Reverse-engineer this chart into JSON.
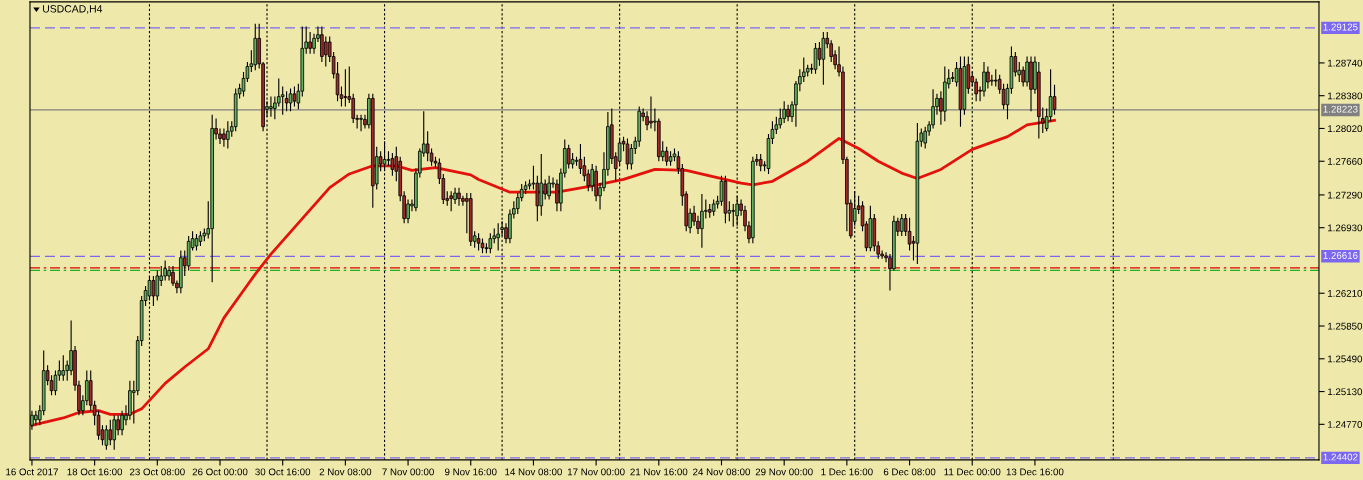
{
  "chart_data": {
    "type": "candlestick",
    "title": "USDCAD,H4",
    "colors": [
      "#5fb35f",
      "#5fb35f",
      "#5fb35f",
      "#5fb35f",
      "#a2282a",
      "#a2282a",
      "#5fb35f",
      "#5fb35f",
      "#5fb35f",
      "#5fb35f",
      "#5fb35f",
      "#a2282a",
      "#a2282a",
      "#5fb35f",
      "#5fb35f",
      "#a2282a",
      "#a2282a",
      "#a2282a",
      "#a2282a",
      "#5fb35f",
      "#a2282a",
      "#5fb35f",
      "#a2282a",
      "#5fb35f",
      "#5fb35f",
      "#5fb35f",
      "#5fb35f",
      "#5fb35f",
      "#5fb35f",
      "#5fb35f",
      "#5fb35f",
      "#a2282a",
      "#5fb35f",
      "#5fb35f",
      "#5fb35f",
      "#5fb35f",
      "#a2282a",
      "#a2282a",
      "#5fb35f",
      "#a2282a",
      "#5fb35f",
      "#5fb35f",
      "#5fb35f",
      "#5fb35f",
      "#5fb35f",
      "#5fb35f",
      "#5fb35f",
      "#a2282a",
      "#a2282a",
      "#a2282a",
      "#5fb35f",
      "#5fb35f",
      "#5fb35f",
      "#5fb35f",
      "#5fb35f",
      "#5fb35f",
      "#5fb35f",
      "#5fb35f",
      "#a2282a",
      "#a2282a",
      "#5fb35f",
      "#5fb35f",
      "#5fb35f",
      "#5fb35f",
      "#5fb35f",
      "#a2282a",
      "#5fb35f",
      "#a2282a",
      "#5fb35f",
      "#5fb35f",
      "#5fb35f",
      "#a2282a",
      "#5fb35f",
      "#5fb35f",
      "#a2282a",
      "#a2282a",
      "#a2282a",
      "#a2282a",
      "#a2282a",
      "#a2282a",
      "#a2282a",
      "#a2282a",
      "#a2282a",
      "#a2282a",
      "#5fb35f",
      "#a2282a",
      "#5fb35f",
      "#a2282a",
      "#5fb35f",
      "#a2282a",
      "#5fb35f",
      "#5fb35f",
      "#a2282a",
      "#a2282a",
      "#a2282a",
      "#a2282a",
      "#5fb35f",
      "#5fb35f",
      "#5fb35f",
      "#5fb35f",
      "#5fb35f",
      "#a2282a",
      "#a2282a",
      "#a2282a",
      "#a2282a",
      "#a2282a",
      "#a2282a",
      "#a2282a",
      "#5fb35f",
      "#a2282a",
      "#a2282a",
      "#a2282a",
      "#a2282a",
      "#5fb35f",
      "#a2282a",
      "#a2282a",
      "#a2282a",
      "#5fb35f",
      "#5fb35f",
      "#5fb35f",
      "#5fb35f",
      "#a2282a",
      "#5fb35f",
      "#5fb35f",
      "#5fb35f",
      "#5fb35f",
      "#5fb35f",
      "#5fb35f",
      "#5fb35f",
      "#a2282a",
      "#5fb35f",
      "#a2282a",
      "#5fb35f",
      "#5fb35f",
      "#a2282a",
      "#5fb35f",
      "#5fb35f",
      "#a2282a",
      "#5fb35f",
      "#5fb35f",
      "#a2282a",
      "#a2282a",
      "#a2282a",
      "#5fb35f",
      "#a2282a",
      "#5fb35f",
      "#5fb35f",
      "#5fb35f",
      "#a2282a",
      "#a2282a",
      "#5fb35f",
      "#a2282a",
      "#a2282a",
      "#5fb35f",
      "#5fb35f",
      "#5fb35f",
      "#a2282a",
      "#a2282a",
      "#a2282a",
      "#5fb35f",
      "#a2282a",
      "#5fb35f",
      "#a2282a",
      "#5fb35f",
      "#5fb35f",
      "#a2282a",
      "#a2282a",
      "#a2282a",
      "#5fb35f",
      "#a2282a",
      "#a2282a",
      "#5fb35f",
      "#5fb35f",
      "#a2282a",
      "#5fb35f",
      "#5fb35f",
      "#5fb35f",
      "#a2282a",
      "#5fb35f",
      "#5fb35f",
      "#5fb35f",
      "#a2282a",
      "#a2282a",
      "#a2282a",
      "#5fb35f",
      "#a2282a",
      "#a2282a",
      "#5fb35f",
      "#5fb35f",
      "#5fb35f",
      "#5fb35f",
      "#5fb35f",
      "#5fb35f",
      "#a2282a",
      "#5fb35f",
      "#5fb35f",
      "#5fb35f",
      "#5fb35f",
      "#5fb35f",
      "#a2282a",
      "#5fb35f",
      "#a2282a",
      "#5fb35f",
      "#a2282a",
      "#a2282a",
      "#a2282a",
      "#a2282a",
      "#a2282a",
      "#a2282a",
      "#a2282a",
      "#5fb35f",
      "#a2282a",
      "#a2282a",
      "#a2282a",
      "#5fb35f",
      "#a2282a",
      "#a2282a",
      "#a2282a",
      "#a2282a",
      "#a2282a",
      "#5fb35f",
      "#a2282a",
      "#5fb35f",
      "#a2282a",
      "#a2282a",
      "#a2282a",
      "#5fb35f",
      "#5fb35f",
      "#5fb35f",
      "#5fb35f",
      "#5fb35f",
      "#5fb35f",
      "#a2282a",
      "#5fb35f",
      "#5fb35f",
      "#5fb35f",
      "#5fb35f",
      "#a2282a",
      "#5fb35f",
      "#a2282a",
      "#a2282a",
      "#a2282a",
      "#a2282a",
      "#5fb35f",
      "#a2282a",
      "#5fb35f",
      "#a2282a",
      "#a2282a",
      "#a2282a",
      "#5fb35f",
      "#5fb35f",
      "#a2282a",
      "#5fb35f",
      "#a2282a",
      "#5fb35f",
      "#a2282a",
      "#5fb35f",
      "#a2282a",
      "#a2282a",
      "#5fb35f",
      "#5fb35f",
      "#a2282a",
      null,
      null,
      null,
      null,
      null,
      null,
      null,
      null,
      null,
      null,
      null,
      null,
      null,
      null,
      null,
      null,
      null,
      null,
      null,
      null,
      null,
      null,
      null,
      null,
      null,
      null,
      null,
      null,
      null,
      null,
      null,
      null,
      null,
      null,
      null,
      null,
      null,
      null,
      null,
      null,
      null,
      null,
      null,
      null,
      null,
      null,
      null,
      null,
      null,
      null,
      null,
      null,
      null,
      null,
      null,
      null,
      null,
      null,
      null,
      null,
      null,
      null,
      null,
      null,
      null,
      null,
      null
    ],
    "categories": [
      "16 Oct 2017",
      null,
      null,
      null,
      null,
      null,
      null,
      null,
      null,
      null,
      null,
      null,
      null,
      null,
      null,
      null,
      "18 Oct 16:00",
      null,
      null,
      null,
      null,
      null,
      null,
      null,
      null,
      null,
      null,
      null,
      null,
      null,
      null,
      null,
      "23 Oct 08:00",
      null,
      null,
      null,
      null,
      null,
      null,
      null,
      null,
      null,
      null,
      null,
      null,
      null,
      null,
      null,
      "26 Oct 00:00",
      null,
      null,
      null,
      null,
      null,
      null,
      null,
      null,
      null,
      null,
      null,
      null,
      null,
      null,
      null,
      "30 Oct 16:00",
      null,
      null,
      null,
      null,
      null,
      null,
      null,
      null,
      null,
      null,
      null,
      null,
      null,
      null,
      null,
      "2 Nov 08:00",
      null,
      null,
      null,
      null,
      null,
      null,
      null,
      null,
      null,
      null,
      null,
      null,
      null,
      null,
      null,
      "7 Nov 00:00",
      null,
      null,
      null,
      null,
      null,
      null,
      null,
      null,
      null,
      null,
      null,
      null,
      null,
      null,
      null,
      "9 Nov 16:00",
      null,
      null,
      null,
      null,
      null,
      null,
      null,
      null,
      null,
      null,
      null,
      null,
      null,
      null,
      null,
      "14 Nov 08:00",
      null,
      null,
      null,
      null,
      null,
      null,
      null,
      null,
      null,
      null,
      null,
      null,
      null,
      null,
      null,
      "17 Nov 00:00",
      null,
      null,
      null,
      null,
      null,
      null,
      null,
      null,
      null,
      null,
      null,
      null,
      null,
      null,
      null,
      "21 Nov 16:00",
      null,
      null,
      null,
      null,
      null,
      null,
      null,
      null,
      null,
      null,
      null,
      null,
      null,
      null,
      null,
      "24 Nov 08:00",
      null,
      null,
      null,
      null,
      null,
      null,
      null,
      null,
      null,
      null,
      null,
      null,
      null,
      null,
      null,
      "29 Nov 00:00",
      null,
      null,
      null,
      null,
      null,
      null,
      null,
      null,
      null,
      null,
      null,
      null,
      null,
      null,
      null,
      "1 Dec 16:00",
      null,
      null,
      null,
      null,
      null,
      null,
      null,
      null,
      null,
      null,
      null,
      null,
      null,
      null,
      null,
      "6 Dec 08:00",
      null,
      null,
      null,
      null,
      null,
      null,
      null,
      null,
      null,
      null,
      null,
      null,
      null,
      null,
      null,
      "11 Dec 00:00",
      null,
      null,
      null,
      null,
      null,
      null,
      null,
      null,
      null,
      null,
      null,
      null,
      null,
      null,
      null,
      "13 Dec 16:00",
      null,
      null,
      null,
      null,
      null,
      null,
      null,
      null,
      null,
      null,
      null,
      null,
      null,
      null,
      null,
      null,
      null,
      null,
      null,
      null,
      null,
      null,
      null,
      null,
      null,
      null,
      null,
      null,
      null,
      null,
      null,
      null,
      null,
      null,
      null,
      null,
      null,
      null,
      null,
      null,
      null,
      null,
      null,
      null,
      null,
      null,
      null,
      null,
      null,
      null,
      null,
      null,
      null,
      null,
      null,
      null,
      null,
      null,
      null,
      null,
      null,
      null,
      null,
      null,
      null,
      null,
      null,
      null,
      null,
      null,
      null,
      null
    ],
    "ohlc": [
      [
        1.2476,
        1.2492,
        1.2471,
        1.2487
      ],
      [
        1.2482,
        1.2492,
        1.2476,
        1.2487
      ],
      [
        1.2482,
        1.2498,
        1.2476,
        1.2492
      ],
      [
        1.2492,
        1.2558,
        1.2487,
        1.2536
      ],
      [
        1.2536,
        1.2542,
        1.252,
        1.2525
      ],
      [
        1.2525,
        1.2531,
        1.2509,
        1.2514
      ],
      [
        1.2514,
        1.2536,
        1.2509,
        1.2531
      ],
      [
        1.2531,
        1.2547,
        1.2525,
        1.2536
      ],
      [
        1.2531,
        1.2553,
        1.2525,
        1.2536
      ],
      [
        1.2536,
        1.2547,
        1.2525,
        1.2542
      ],
      [
        1.2536,
        1.2591,
        1.2531,
        1.2558
      ],
      [
        1.2558,
        1.2563,
        1.2514,
        1.252
      ],
      [
        1.252,
        1.2525,
        1.2487,
        1.2492
      ],
      [
        1.2492,
        1.2509,
        1.2487,
        1.2503
      ],
      [
        1.2503,
        1.2536,
        1.2498,
        1.2525
      ],
      [
        1.2525,
        1.2536,
        1.2492,
        1.2498
      ],
      [
        1.2498,
        1.2503,
        1.2476,
        1.2487
      ],
      [
        1.2487,
        1.2492,
        1.246,
        1.2465
      ],
      [
        1.2471,
        1.2476,
        1.2454,
        1.246
      ],
      [
        1.2454,
        1.2476,
        1.2449,
        1.2471
      ],
      [
        1.2471,
        1.2482,
        1.2454,
        1.246
      ],
      [
        1.246,
        1.2487,
        1.2449,
        1.2482
      ],
      [
        1.2482,
        1.2487,
        1.2465,
        1.2471
      ],
      [
        1.2471,
        1.2492,
        1.2465,
        1.2487
      ],
      [
        1.2482,
        1.2498,
        1.2476,
        1.2487
      ],
      [
        1.2487,
        1.2525,
        1.2482,
        1.2514
      ],
      [
        1.2512,
        1.2525,
        1.2478,
        1.2514
      ],
      [
        1.2514,
        1.2574,
        1.2509,
        1.2569
      ],
      [
        1.2569,
        1.2618,
        1.2563,
        1.2613
      ],
      [
        1.2613,
        1.2629,
        1.2607,
        1.2624
      ],
      [
        1.2618,
        1.264,
        1.2613,
        1.2635
      ],
      [
        1.2635,
        1.264,
        1.2607,
        1.2618
      ],
      [
        1.2618,
        1.2646,
        1.2613,
        1.264
      ],
      [
        1.2635,
        1.2651,
        1.2629,
        1.264
      ],
      [
        1.264,
        1.2657,
        1.2635,
        1.2648
      ],
      [
        1.264,
        1.2651,
        1.2635,
        1.2646
      ],
      [
        1.2644,
        1.2651,
        1.2629,
        1.2632
      ],
      [
        1.2632,
        1.2635,
        1.2621,
        1.2627
      ],
      [
        1.2627,
        1.2668,
        1.2621,
        1.266
      ],
      [
        1.266,
        1.2668,
        1.264,
        1.2651
      ],
      [
        1.2651,
        1.2684,
        1.2646,
        1.2678
      ],
      [
        1.2671,
        1.2689,
        1.2668,
        1.2681
      ],
      [
        1.2673,
        1.2686,
        1.2668,
        1.2681
      ],
      [
        1.2678,
        1.2689,
        1.2673,
        1.2684
      ],
      [
        1.2684,
        1.2692,
        1.2678,
        1.2687
      ],
      [
        1.2686,
        1.2722,
        1.2681,
        1.2692
      ],
      [
        1.2692,
        1.2817,
        1.2633,
        1.2802
      ],
      [
        1.2802,
        1.2813,
        1.279,
        1.2796
      ],
      [
        1.2796,
        1.2802,
        1.2785,
        1.2791
      ],
      [
        1.2796,
        1.2802,
        1.2782,
        1.279
      ],
      [
        1.279,
        1.281,
        1.278,
        1.2799
      ],
      [
        1.2799,
        1.281,
        1.2793,
        1.2804
      ],
      [
        1.2804,
        1.2846,
        1.2799,
        1.284
      ],
      [
        1.284,
        1.2851,
        1.2835,
        1.2846
      ],
      [
        1.2843,
        1.2864,
        1.2837,
        1.2857
      ],
      [
        1.2857,
        1.2875,
        1.2853,
        1.287
      ],
      [
        1.287,
        1.2888,
        1.2864,
        1.2873
      ],
      [
        1.2872,
        1.2917,
        1.2866,
        1.2901
      ],
      [
        1.2901,
        1.2917,
        1.2868,
        1.2873
      ],
      [
        1.2873,
        1.2875,
        1.2799,
        1.2804
      ],
      [
        1.2823,
        1.2832,
        1.2815,
        1.2826
      ],
      [
        1.2824,
        1.2837,
        1.2815,
        1.2826
      ],
      [
        1.2824,
        1.2837,
        1.2812,
        1.283
      ],
      [
        1.283,
        1.2857,
        1.2826,
        1.2837
      ],
      [
        1.2837,
        1.2848,
        1.2817,
        1.2839
      ],
      [
        1.2835,
        1.2843,
        1.2821,
        1.283
      ],
      [
        1.283,
        1.2846,
        1.2821,
        1.284
      ],
      [
        1.284,
        1.2848,
        1.2826,
        1.2832
      ],
      [
        1.283,
        1.2851,
        1.2823,
        1.2843
      ],
      [
        1.2843,
        1.2914,
        1.2837,
        1.289
      ],
      [
        1.289,
        1.2914,
        1.2884,
        1.2897
      ],
      [
        1.2897,
        1.2908,
        1.2884,
        1.289
      ],
      [
        1.289,
        1.2906,
        1.2884,
        1.2901
      ],
      [
        1.2901,
        1.2914,
        1.2897,
        1.2905
      ],
      [
        1.2905,
        1.2914,
        1.2875,
        1.2881
      ],
      [
        1.2897,
        1.2903,
        1.287,
        1.2883
      ],
      [
        1.2897,
        1.2903,
        1.2875,
        1.2881
      ],
      [
        1.2881,
        1.2886,
        1.2857,
        1.2862
      ],
      [
        1.2862,
        1.2875,
        1.2832,
        1.2839
      ],
      [
        1.2839,
        1.2848,
        1.2826,
        1.2835
      ],
      [
        1.2837,
        1.2867,
        1.2826,
        1.2836
      ],
      [
        1.2837,
        1.287,
        1.283,
        1.2834
      ],
      [
        1.2835,
        1.284,
        1.2808,
        1.2813
      ],
      [
        1.2813,
        1.2817,
        1.2802,
        1.2812
      ],
      [
        1.2812,
        1.2817,
        1.2799,
        1.2813
      ],
      [
        1.2812,
        1.2817,
        1.2802,
        1.2806
      ],
      [
        1.2806,
        1.284,
        1.2802,
        1.2835
      ],
      [
        1.2835,
        1.284,
        1.2715,
        1.2739
      ],
      [
        1.2741,
        1.2782,
        1.2735,
        1.2771
      ],
      [
        1.2771,
        1.2777,
        1.2755,
        1.2763
      ],
      [
        1.2763,
        1.2788,
        1.2755,
        1.2768
      ],
      [
        1.2767,
        1.2777,
        1.2761,
        1.2768
      ],
      [
        1.2769,
        1.2775,
        1.275,
        1.2757
      ],
      [
        1.2771,
        1.2782,
        1.2744,
        1.2755
      ],
      [
        1.2766,
        1.2771,
        1.2722,
        1.2728
      ],
      [
        1.2728,
        1.2733,
        1.2698,
        1.2703
      ],
      [
        1.2703,
        1.2724,
        1.2698,
        1.2719
      ],
      [
        1.2717,
        1.2724,
        1.2711,
        1.2719
      ],
      [
        1.2715,
        1.2758,
        1.2711,
        1.2753
      ],
      [
        1.2753,
        1.278,
        1.2748,
        1.2777
      ],
      [
        1.2775,
        1.2821,
        1.2771,
        1.2785
      ],
      [
        1.2785,
        1.2799,
        1.2766,
        1.2775
      ],
      [
        1.2775,
        1.278,
        1.2761,
        1.2766
      ],
      [
        1.2766,
        1.2771,
        1.2759,
        1.2764
      ],
      [
        1.2764,
        1.2769,
        1.2741,
        1.2747
      ],
      [
        1.2747,
        1.2752,
        1.2719,
        1.2724
      ],
      [
        1.2725,
        1.2733,
        1.2717,
        1.2723
      ],
      [
        1.2728,
        1.2733,
        1.2711,
        1.2725
      ],
      [
        1.2724,
        1.2737,
        1.2719,
        1.2731
      ],
      [
        1.2731,
        1.2737,
        1.2717,
        1.2725
      ],
      [
        1.2725,
        1.2728,
        1.2717,
        1.2722
      ],
      [
        1.2725,
        1.2731,
        1.2687,
        1.2722
      ],
      [
        1.2725,
        1.2731,
        1.2673,
        1.2678
      ],
      [
        1.2678,
        1.2689,
        1.2671,
        1.2684
      ],
      [
        1.2681,
        1.2687,
        1.2668,
        1.2676
      ],
      [
        1.2676,
        1.2681,
        1.2665,
        1.2671
      ],
      [
        1.2671,
        1.2676,
        1.2665,
        1.267
      ],
      [
        1.267,
        1.2687,
        1.2665,
        1.2681
      ],
      [
        1.2681,
        1.2692,
        1.2676,
        1.2684
      ],
      [
        1.2682,
        1.2698,
        1.2668,
        1.2686
      ],
      [
        1.2691,
        1.27,
        1.2684,
        1.2693
      ],
      [
        1.2693,
        1.2698,
        1.2676,
        1.2681
      ],
      [
        1.2681,
        1.2713,
        1.2676,
        1.2708
      ],
      [
        1.2708,
        1.2722,
        1.2703,
        1.2714
      ],
      [
        1.2714,
        1.2731,
        1.2708,
        1.2726
      ],
      [
        1.2726,
        1.2741,
        1.2722,
        1.2735
      ],
      [
        1.2735,
        1.2744,
        1.273,
        1.2739
      ],
      [
        1.2739,
        1.2746,
        1.2735,
        1.2741
      ],
      [
        1.2741,
        1.2761,
        1.2735,
        1.2742
      ],
      [
        1.2742,
        1.275,
        1.27,
        1.2717
      ],
      [
        1.2717,
        1.2774,
        1.2706,
        1.2742
      ],
      [
        1.2741,
        1.2746,
        1.2724,
        1.273
      ],
      [
        1.2728,
        1.275,
        1.2724,
        1.2742
      ],
      [
        1.2741,
        1.2748,
        1.2737,
        1.2742
      ],
      [
        1.2741,
        1.2746,
        1.2711,
        1.272
      ],
      [
        1.272,
        1.2758,
        1.2711,
        1.2753
      ],
      [
        1.2753,
        1.279,
        1.2748,
        1.278
      ],
      [
        1.278,
        1.2784,
        1.2758,
        1.2763
      ],
      [
        1.2763,
        1.2775,
        1.2758,
        1.2768
      ],
      [
        1.2766,
        1.2771,
        1.2761,
        1.2767
      ],
      [
        1.2768,
        1.2785,
        1.2752,
        1.2758
      ],
      [
        1.2761,
        1.2771,
        1.2744,
        1.275
      ],
      [
        1.2752,
        1.2757,
        1.2733,
        1.2739
      ],
      [
        1.2739,
        1.2763,
        1.2733,
        1.2757
      ],
      [
        1.2755,
        1.2761,
        1.2722,
        1.2728
      ],
      [
        1.2728,
        1.2742,
        1.2713,
        1.2737
      ],
      [
        1.2737,
        1.2776,
        1.2733,
        1.2757
      ],
      [
        1.2757,
        1.282,
        1.275,
        1.2804
      ],
      [
        1.2806,
        1.2824,
        1.2763,
        1.2769
      ],
      [
        1.2771,
        1.2776,
        1.2744,
        1.2758
      ],
      [
        1.2766,
        1.2791,
        1.2761,
        1.2786
      ],
      [
        1.2788,
        1.2793,
        1.2777,
        1.2785
      ],
      [
        1.2785,
        1.2791,
        1.2757,
        1.2763
      ],
      [
        1.2763,
        1.2785,
        1.2757,
        1.278
      ],
      [
        1.278,
        1.2793,
        1.2774,
        1.2788
      ],
      [
        1.2788,
        1.2826,
        1.2782,
        1.2821
      ],
      [
        1.2819,
        1.2824,
        1.281,
        1.2815
      ],
      [
        1.2815,
        1.2821,
        1.28,
        1.2806
      ],
      [
        1.281,
        1.2837,
        1.2802,
        1.2808
      ],
      [
        1.2809,
        1.2824,
        1.2799,
        1.281
      ],
      [
        1.281,
        1.2813,
        1.2766,
        1.2771
      ],
      [
        1.2771,
        1.2788,
        1.2766,
        1.2777
      ],
      [
        1.2777,
        1.2782,
        1.2761,
        1.2766
      ],
      [
        1.2766,
        1.2777,
        1.2761,
        1.2771
      ],
      [
        1.2771,
        1.278,
        1.2766,
        1.2774
      ],
      [
        1.2771,
        1.2777,
        1.2752,
        1.2758
      ],
      [
        1.2758,
        1.2763,
        1.2717,
        1.2728
      ],
      [
        1.273,
        1.2733,
        1.2689,
        1.2695
      ],
      [
        1.2693,
        1.2714,
        1.2687,
        1.2709
      ],
      [
        1.2709,
        1.2717,
        1.2695,
        1.27
      ],
      [
        1.27,
        1.2706,
        1.2686,
        1.2692
      ],
      [
        1.2692,
        1.273,
        1.2671,
        1.2711
      ],
      [
        1.2711,
        1.2724,
        1.2703,
        1.2712
      ],
      [
        1.2713,
        1.2719,
        1.2704,
        1.271
      ],
      [
        1.2711,
        1.2724,
        1.2706,
        1.2719
      ],
      [
        1.2719,
        1.2728,
        1.2714,
        1.2722
      ],
      [
        1.2722,
        1.275,
        1.2717,
        1.2744
      ],
      [
        1.2744,
        1.275,
        1.2698,
        1.2709
      ],
      [
        1.2709,
        1.2722,
        1.27,
        1.2712
      ],
      [
        1.2711,
        1.2719,
        1.2694,
        1.2712
      ],
      [
        1.2706,
        1.2728,
        1.2695,
        1.2719
      ],
      [
        1.2719,
        1.2724,
        1.2706,
        1.2712
      ],
      [
        1.2712,
        1.2717,
        1.2689,
        1.2695
      ],
      [
        1.2695,
        1.27,
        1.2676,
        1.2681
      ],
      [
        1.2682,
        1.2771,
        1.2676,
        1.2766
      ],
      [
        1.2768,
        1.2774,
        1.2761,
        1.2766
      ],
      [
        1.2768,
        1.2774,
        1.2755,
        1.2761
      ],
      [
        1.2761,
        1.2766,
        1.2755,
        1.2762
      ],
      [
        1.2758,
        1.2796,
        1.2752,
        1.2791
      ],
      [
        1.2791,
        1.281,
        1.2785,
        1.2801
      ],
      [
        1.2801,
        1.2815,
        1.2796,
        1.2806
      ],
      [
        1.2806,
        1.2824,
        1.2802,
        1.2813
      ],
      [
        1.2813,
        1.2832,
        1.2808,
        1.2823
      ],
      [
        1.2823,
        1.2828,
        1.281,
        1.2815
      ],
      [
        1.2815,
        1.2832,
        1.2809,
        1.2828
      ],
      [
        1.2828,
        1.2854,
        1.2804,
        1.2851
      ],
      [
        1.2851,
        1.2867,
        1.2843,
        1.2859
      ],
      [
        1.2859,
        1.288,
        1.2853,
        1.2864
      ],
      [
        1.2864,
        1.2872,
        1.2859,
        1.2868
      ],
      [
        1.2868,
        1.2873,
        1.2862,
        1.2867
      ],
      [
        1.2867,
        1.2896,
        1.2862,
        1.289
      ],
      [
        1.289,
        1.2897,
        1.2871,
        1.2878
      ],
      [
        1.2878,
        1.2908,
        1.285,
        1.2901
      ],
      [
        1.2901,
        1.2908,
        1.289,
        1.2895
      ],
      [
        1.2895,
        1.2899,
        1.2875,
        1.2881
      ],
      [
        1.2883,
        1.2888,
        1.2867,
        1.2872
      ],
      [
        1.2872,
        1.2892,
        1.2859,
        1.2864
      ],
      [
        1.2864,
        1.287,
        1.2763,
        1.2768
      ],
      [
        1.2768,
        1.2771,
        1.2689,
        1.2719
      ],
      [
        1.272,
        1.2724,
        1.2681,
        1.2684
      ],
      [
        1.27,
        1.2733,
        1.2695,
        1.2714
      ],
      [
        1.2717,
        1.2728,
        1.2708,
        1.2713
      ],
      [
        1.2717,
        1.2722,
        1.2689,
        1.2695
      ],
      [
        1.2697,
        1.27,
        1.2667,
        1.2671
      ],
      [
        1.2671,
        1.2717,
        1.2667,
        1.2703
      ],
      [
        1.2703,
        1.2708,
        1.2667,
        1.2673
      ],
      [
        1.2673,
        1.2678,
        1.2659,
        1.2664
      ],
      [
        1.2664,
        1.2668,
        1.2659,
        1.2662
      ],
      [
        1.2662,
        1.2666,
        1.2655,
        1.266
      ],
      [
        1.266,
        1.2664,
        1.2624,
        1.2648
      ],
      [
        1.2648,
        1.2706,
        1.2646,
        1.27
      ],
      [
        1.27,
        1.2704,
        1.2684,
        1.2689
      ],
      [
        1.2689,
        1.2708,
        1.2684,
        1.2703
      ],
      [
        1.2703,
        1.2708,
        1.2684,
        1.2689
      ],
      [
        1.2689,
        1.2704,
        1.2668,
        1.2675
      ],
      [
        1.2678,
        1.2684,
        1.2657,
        1.2676
      ],
      [
        1.2676,
        1.2808,
        1.2653,
        1.2788
      ],
      [
        1.2788,
        1.2802,
        1.2782,
        1.2797
      ],
      [
        1.2786,
        1.2804,
        1.278,
        1.2799
      ],
      [
        1.2799,
        1.281,
        1.2794,
        1.2806
      ],
      [
        1.2806,
        1.2845,
        1.2802,
        1.2826
      ],
      [
        1.2826,
        1.284,
        1.2817,
        1.2835
      ],
      [
        1.2835,
        1.2843,
        1.2806,
        1.2821
      ],
      [
        1.2821,
        1.287,
        1.281,
        1.2853
      ],
      [
        1.2851,
        1.2867,
        1.2846,
        1.2857
      ],
      [
        1.2857,
        1.2864,
        1.2853,
        1.2858
      ],
      [
        1.2853,
        1.2875,
        1.2848,
        1.2868
      ],
      [
        1.2868,
        1.2881,
        1.2804,
        1.2823
      ],
      [
        1.2823,
        1.2881,
        1.2817,
        1.287
      ],
      [
        1.2872,
        1.2881,
        1.284,
        1.2846
      ],
      [
        1.2859,
        1.2864,
        1.2848,
        1.2853
      ],
      [
        1.2853,
        1.2857,
        1.2832,
        1.284
      ],
      [
        1.2844,
        1.2848,
        1.2832,
        1.2843
      ],
      [
        1.2843,
        1.2875,
        1.2837,
        1.2864
      ],
      [
        1.2864,
        1.287,
        1.2846,
        1.2853
      ],
      [
        1.2854,
        1.2861,
        1.2849,
        1.2855
      ],
      [
        1.2855,
        1.2867,
        1.2848,
        1.2854
      ],
      [
        1.2856,
        1.2861,
        1.284,
        1.2845
      ],
      [
        1.2845,
        1.2851,
        1.2823,
        1.2828
      ],
      [
        1.2828,
        1.2851,
        1.2812,
        1.2846
      ],
      [
        1.2846,
        1.2892,
        1.284,
        1.2881
      ],
      [
        1.2881,
        1.2886,
        1.2859,
        1.2864
      ],
      [
        1.2861,
        1.2875,
        1.2853,
        1.2866
      ],
      [
        1.2866,
        1.287,
        1.2848,
        1.2853
      ],
      [
        1.2853,
        1.2881,
        1.2848,
        1.2875
      ],
      [
        1.2875,
        1.2881,
        1.2821,
        1.2845
      ],
      [
        1.2845,
        1.2881,
        1.284,
        1.2875
      ],
      [
        1.2864,
        1.2875,
        1.2791,
        1.2815
      ],
      [
        1.2813,
        1.2825,
        1.2797,
        1.2808
      ],
      [
        1.2802,
        1.2824,
        1.2799,
        1.2815
      ],
      [
        1.2815,
        1.2867,
        1.281,
        1.2837
      ],
      [
        1.2837,
        1.285,
        1.2817,
        1.2823
      ],
      null,
      null,
      null,
      null,
      null,
      null,
      null,
      null,
      null,
      null,
      null,
      null,
      null,
      null,
      null,
      null,
      null,
      null,
      null,
      null,
      null,
      null,
      null,
      null,
      null,
      null,
      null,
      null,
      null,
      null,
      null,
      null,
      null,
      null,
      null,
      null,
      null,
      null,
      null,
      null,
      null,
      null,
      null,
      null,
      null,
      null,
      null,
      null,
      null,
      null,
      null,
      null,
      null,
      null,
      null,
      null,
      null,
      null,
      null,
      null,
      null,
      null,
      null,
      null,
      null,
      null,
      null
    ],
    "series": [
      {
        "type": "line",
        "color": "#e3120b",
        "values": [
          1.2476,
          null,
          null,
          null,
          null,
          null,
          null,
          null,
          1.2484,
          null,
          null,
          null,
          1.249,
          null,
          null,
          null,
          null,
          1.2492,
          null,
          null,
          1.2488,
          null,
          null,
          null,
          null,
          1.2488,
          null,
          null,
          1.2494,
          null,
          null,
          null,
          null,
          null,
          1.2522,
          null,
          null,
          null,
          null,
          1.254,
          null,
          null,
          null,
          null,
          null,
          1.256,
          null,
          null,
          null,
          1.2594,
          null,
          null,
          null,
          null,
          1.2624,
          null,
          null,
          1.2642,
          null,
          null,
          null,
          1.2664,
          null,
          null,
          null,
          null,
          null,
          null,
          null,
          1.2703,
          null,
          null,
          null,
          null,
          null,
          null,
          1.2737,
          null,
          null,
          null,
          null,
          1.2752,
          null,
          null,
          null,
          null,
          null,
          1.2761,
          null,
          null,
          null,
          null,
          null,
          1.2761,
          null,
          null,
          null,
          1.2756,
          null,
          null,
          null,
          null,
          null,
          1.2759,
          null,
          null,
          null,
          null,
          null,
          null,
          null,
          null,
          1.2751,
          null,
          1.2746,
          null,
          null,
          null,
          null,
          null,
          null,
          null,
          1.2732,
          null,
          null,
          null,
          null,
          null,
          null,
          null,
          null,
          null,
          null,
          null,
          1.2732,
          null,
          null,
          null,
          null,
          null,
          null,
          null,
          null,
          1.2739,
          null,
          null,
          null,
          null,
          null,
          null,
          null,
          1.2746,
          null,
          null,
          null,
          null,
          null,
          null,
          null,
          1.2757,
          null,
          null,
          null,
          null,
          null,
          null,
          null,
          1.2756,
          null,
          null,
          null,
          null,
          null,
          1.275,
          null,
          null,
          null,
          null,
          null,
          null,
          null,
          1.2742,
          null,
          null,
          1.274,
          null,
          null,
          null,
          null,
          1.2744,
          null,
          null,
          null,
          null,
          null,
          null,
          null,
          null,
          1.2766,
          null,
          null,
          null,
          null,
          null,
          null,
          null,
          1.2791,
          null,
          null,
          null,
          null,
          1.278,
          null,
          null,
          null,
          null,
          1.2766,
          null,
          null,
          null,
          null,
          null,
          1.2753,
          null,
          null,
          null,
          1.2747,
          null,
          null,
          null,
          null,
          null,
          1.2757,
          null,
          null,
          null,
          null,
          null,
          null,
          null,
          1.2779,
          null,
          null,
          null,
          null,
          null,
          null,
          null,
          null,
          1.2793,
          null,
          null,
          null,
          null,
          1.2806,
          null,
          null,
          null,
          null,
          null,
          null,
          1.2811,
          null,
          null,
          null,
          null,
          null,
          null,
          null,
          null,
          null,
          null,
          null,
          null,
          null,
          null,
          null,
          null,
          null,
          null,
          null,
          null,
          null,
          null,
          null,
          null,
          null,
          null,
          null,
          null,
          null,
          null,
          null,
          null,
          null,
          null,
          null,
          null,
          null,
          null,
          null,
          null,
          null,
          null,
          null,
          null,
          null,
          null,
          null,
          null,
          null,
          null,
          null,
          null,
          null,
          null,
          null,
          null,
          null,
          null,
          null,
          null,
          null,
          null,
          null,
          null,
          null,
          null,
          null
        ]
      }
    ],
    "ylim": [
      1.2438,
      1.2941
    ],
    "yticks": [
      {
        "value": 1.2874,
        "label": "1.28740"
      },
      {
        "value": 1.2838,
        "label": "1.28380"
      },
      {
        "value": 1.2802,
        "label": "1.28020"
      },
      {
        "value": 1.2766,
        "label": "1.27660"
      },
      {
        "value": 1.2729,
        "label": "1.27290"
      },
      {
        "value": 1.2693,
        "label": "1.26930"
      },
      {
        "value": 1.2621,
        "label": "1.26210"
      },
      {
        "value": 1.2585,
        "label": "1.25850"
      },
      {
        "value": 1.2549,
        "label": "1.25490"
      },
      {
        "value": 1.2513,
        "label": "1.25130"
      },
      {
        "value": 1.2477,
        "label": "1.24770"
      }
    ],
    "ref_lines": [
      {
        "axis": "y",
        "value": 1.29125,
        "label": "1.29125",
        "color": "#7b68ee",
        "line_style": "dashed"
      },
      {
        "axis": "y",
        "value": 1.28223,
        "label": "1.28223",
        "color": "#808080",
        "line_style": "solid"
      },
      {
        "axis": "y",
        "value": 1.26616,
        "label": "1.26616",
        "color": "#7b68ee",
        "line_style": "dashed"
      },
      {
        "axis": "y",
        "value": 1.24402,
        "label": "1.24402",
        "color": "#7b68ee",
        "line_style": "dashed"
      },
      {
        "axis": "y",
        "value": 1.2649,
        "color": "#e00000",
        "line_style": "dashdot"
      },
      {
        "axis": "y",
        "value": 1.2646,
        "color": "#20b020",
        "line_style": "dashdot"
      }
    ]
  }
}
